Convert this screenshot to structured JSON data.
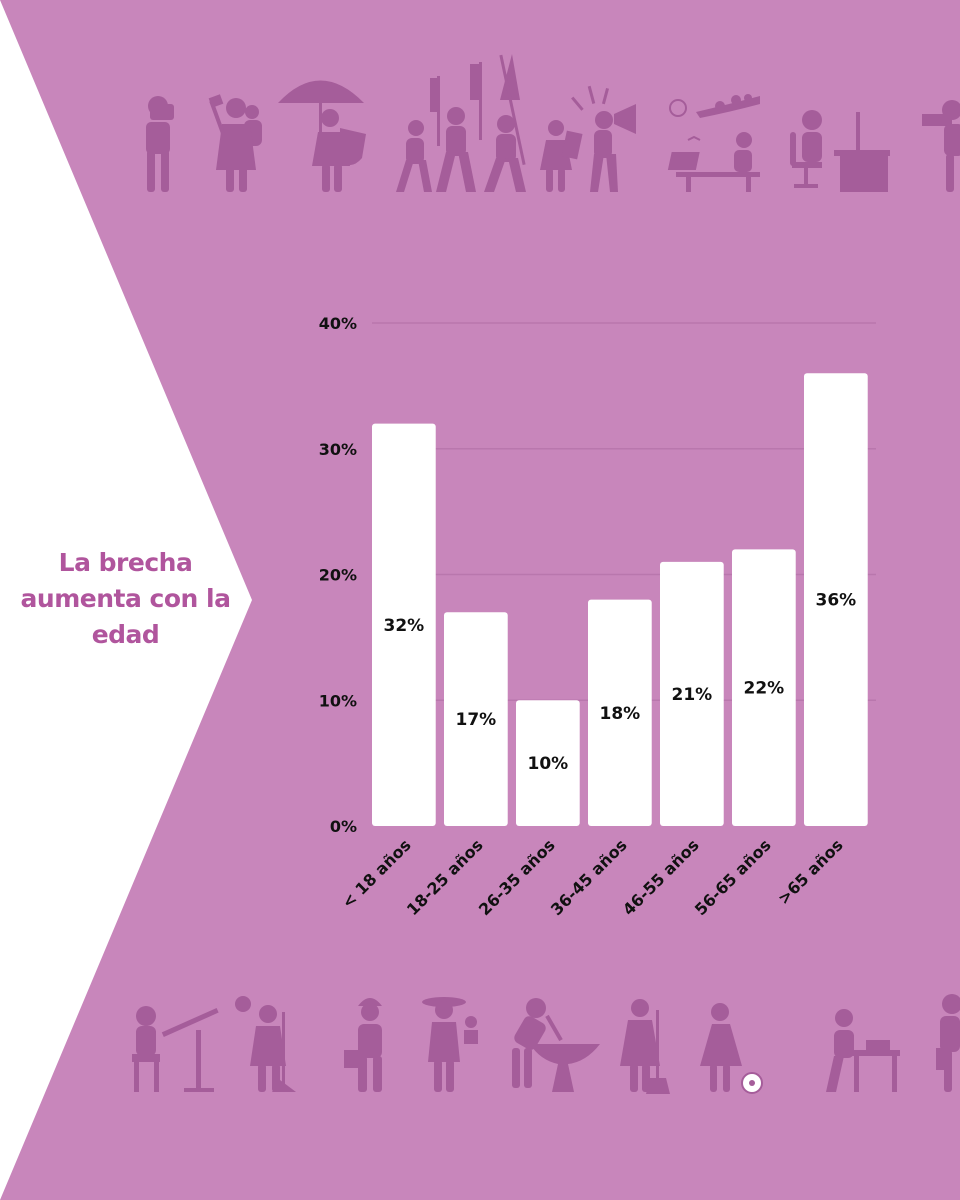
{
  "headline": "La brecha aumenta con la edad",
  "colors": {
    "background": "#c886bb",
    "side_panel": "#ffffff",
    "bar": "#ffffff",
    "icons": "#a55d9a",
    "headline": "#b0559d",
    "gridline": "#b977ad",
    "text": "#111111"
  },
  "icons_top": [
    "photographer-icon",
    "mother-with-child-icon",
    "woman-with-umbrella-and-shield-icon",
    "protest-march-icon",
    "woman-with-megaphone-icon",
    "woman-on-laptop-outdoors-icon",
    "woman-at-desk-icon",
    "woman-with-camera-icon"
  ],
  "icons_bottom": [
    "architect-at-drafting-table-icon",
    "cleaning-worker-icon",
    "construction-worker-icon",
    "gardener-icon",
    "blacksmith-icon",
    "sweeper-icon",
    "girl-with-ball-icon",
    "woodworker-icon",
    "office-worker-icon"
  ],
  "chart_data": {
    "type": "bar",
    "categories": [
      "< 18 años",
      "18-25 años",
      "26-35 años",
      "36-45 años",
      "46-55 años",
      "56-65 años",
      ">65 años"
    ],
    "values": [
      32,
      17,
      10,
      18,
      21,
      22,
      36
    ],
    "data_labels": [
      "32%",
      "17%",
      "10%",
      "18%",
      "21%",
      "22%",
      "36%"
    ],
    "y_ticks": [
      0,
      10,
      20,
      30,
      40
    ],
    "y_tick_labels": [
      "0%",
      "10%",
      "20%",
      "30%",
      "40%"
    ],
    "ylim": [
      0,
      40
    ],
    "grid": true,
    "legend": "none"
  }
}
